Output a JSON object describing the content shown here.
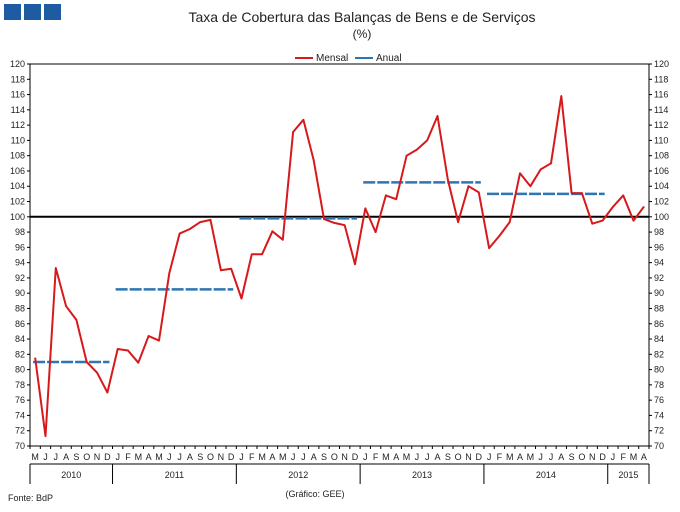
{
  "header": {
    "logo_icon": "bank-logo-icon",
    "title": "Taxa de Cobertura das Balanças de Bens e de Serviços",
    "subtitle": "(%)"
  },
  "footer": {
    "source": "Fonte: BdP",
    "note": "(Gráfico: GEE)"
  },
  "chart_data": {
    "type": "line",
    "title": "Taxa de Cobertura das Balanças de Bens e de Serviços",
    "subtitle": "(%)",
    "xlabel": "",
    "ylabel": "",
    "ylim": [
      70,
      120
    ],
    "ytick_step": 2,
    "yticks_both_sides": true,
    "grid": false,
    "legend_position": "top-center",
    "reference_line": {
      "y": 100,
      "color": "#000000"
    },
    "months": [
      "M",
      "J",
      "J",
      "A",
      "S",
      "O",
      "N",
      "D",
      "J",
      "F",
      "M",
      "A",
      "M",
      "J",
      "J",
      "A",
      "S",
      "O",
      "N",
      "D",
      "J",
      "F",
      "M",
      "A",
      "M",
      "J",
      "J",
      "A",
      "S",
      "O",
      "N",
      "D",
      "J",
      "F",
      "M",
      "A",
      "M",
      "J",
      "J",
      "A",
      "S",
      "O",
      "N",
      "D",
      "J",
      "F",
      "M",
      "A",
      "M",
      "J",
      "J",
      "A",
      "S",
      "O",
      "N",
      "D",
      "J",
      "F",
      "M",
      "A"
    ],
    "years": [
      {
        "label": "2010",
        "start": 0,
        "count": 8
      },
      {
        "label": "2011",
        "start": 8,
        "count": 12
      },
      {
        "label": "2012",
        "start": 20,
        "count": 12
      },
      {
        "label": "2013",
        "start": 32,
        "count": 12
      },
      {
        "label": "2014",
        "start": 44,
        "count": 12
      },
      {
        "label": "2015",
        "start": 56,
        "count": 4
      }
    ],
    "series": [
      {
        "name": "Mensal",
        "color": "#d7191c",
        "values": [
          81.5,
          71.3,
          93.3,
          88.3,
          86.5,
          81.0,
          79.6,
          77.0,
          82.7,
          82.5,
          80.9,
          84.4,
          83.8,
          92.6,
          97.8,
          98.4,
          99.3,
          99.6,
          93.0,
          93.2,
          89.3,
          95.1,
          95.1,
          98.1,
          97.0,
          111.1,
          112.7,
          107.4,
          99.7,
          99.2,
          98.9,
          93.8,
          101.1,
          98.0,
          102.8,
          102.3,
          108.0,
          108.8,
          110.0,
          113.2,
          104.9,
          99.3,
          104.0,
          103.2,
          95.9,
          97.5,
          99.3,
          105.7,
          104.0,
          106.2,
          107.0,
          115.8,
          103.1,
          103.1,
          99.1,
          99.5,
          101.3,
          102.8,
          99.5,
          101.3
        ]
      },
      {
        "name": "Anual",
        "color": "#2e75b6",
        "segments": [
          {
            "year": "2010",
            "value": 81.0
          },
          {
            "year": "2011",
            "value": 90.5
          },
          {
            "year": "2012",
            "value": 99.8
          },
          {
            "year": "2013",
            "value": 104.5
          },
          {
            "year": "2014",
            "value": 103.0
          }
        ]
      }
    ]
  }
}
